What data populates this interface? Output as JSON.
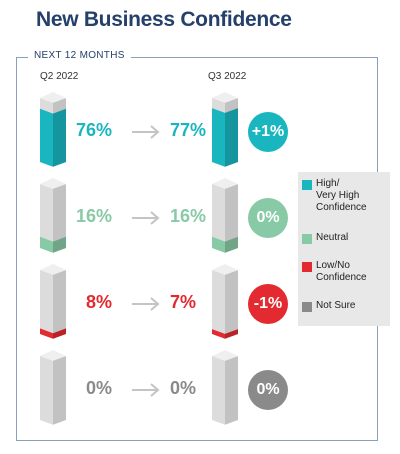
{
  "title": "New Business Confidence",
  "frame_label": "NEXT 12 MONTHS",
  "colors": {
    "high": "#1ab6c0",
    "neutral": "#88c9a6",
    "low": "#e32a30",
    "not_sure": "#8a8a8a",
    "bar_gray": "#dcdcdc",
    "title": "#24406b"
  },
  "chart_data": {
    "type": "bar",
    "categories": [
      "Q2 2022",
      "Q3 2022"
    ],
    "series": [
      {
        "name": "High/ Very High Confidence",
        "values": [
          76,
          77
        ],
        "change": "+1%",
        "color": "#1ab6c0"
      },
      {
        "name": "Neutral",
        "values": [
          16,
          16
        ],
        "change": "0%",
        "color": "#88c9a6"
      },
      {
        "name": "Low/No Confidence",
        "values": [
          8,
          7
        ],
        "change": "-1%",
        "color": "#e32a30"
      },
      {
        "name": "Not Sure",
        "values": [
          0,
          0
        ],
        "change": "0%",
        "color": "#8a8a8a"
      }
    ],
    "value_labels": [
      [
        "76%",
        "77%"
      ],
      [
        "16%",
        "16%"
      ],
      [
        "8%",
        "7%"
      ],
      [
        "0%",
        "0%"
      ]
    ],
    "ylim": [
      0,
      100
    ],
    "legend": "right",
    "grid": false
  },
  "legend": [
    {
      "label": "High/\nVery High\nConfidence",
      "color": "#1ab6c0"
    },
    {
      "label": "Neutral",
      "color": "#88c9a6"
    },
    {
      "label": "Low/No\nConfidence",
      "color": "#e32a30"
    },
    {
      "label": "Not Sure",
      "color": "#8a8a8a"
    }
  ]
}
